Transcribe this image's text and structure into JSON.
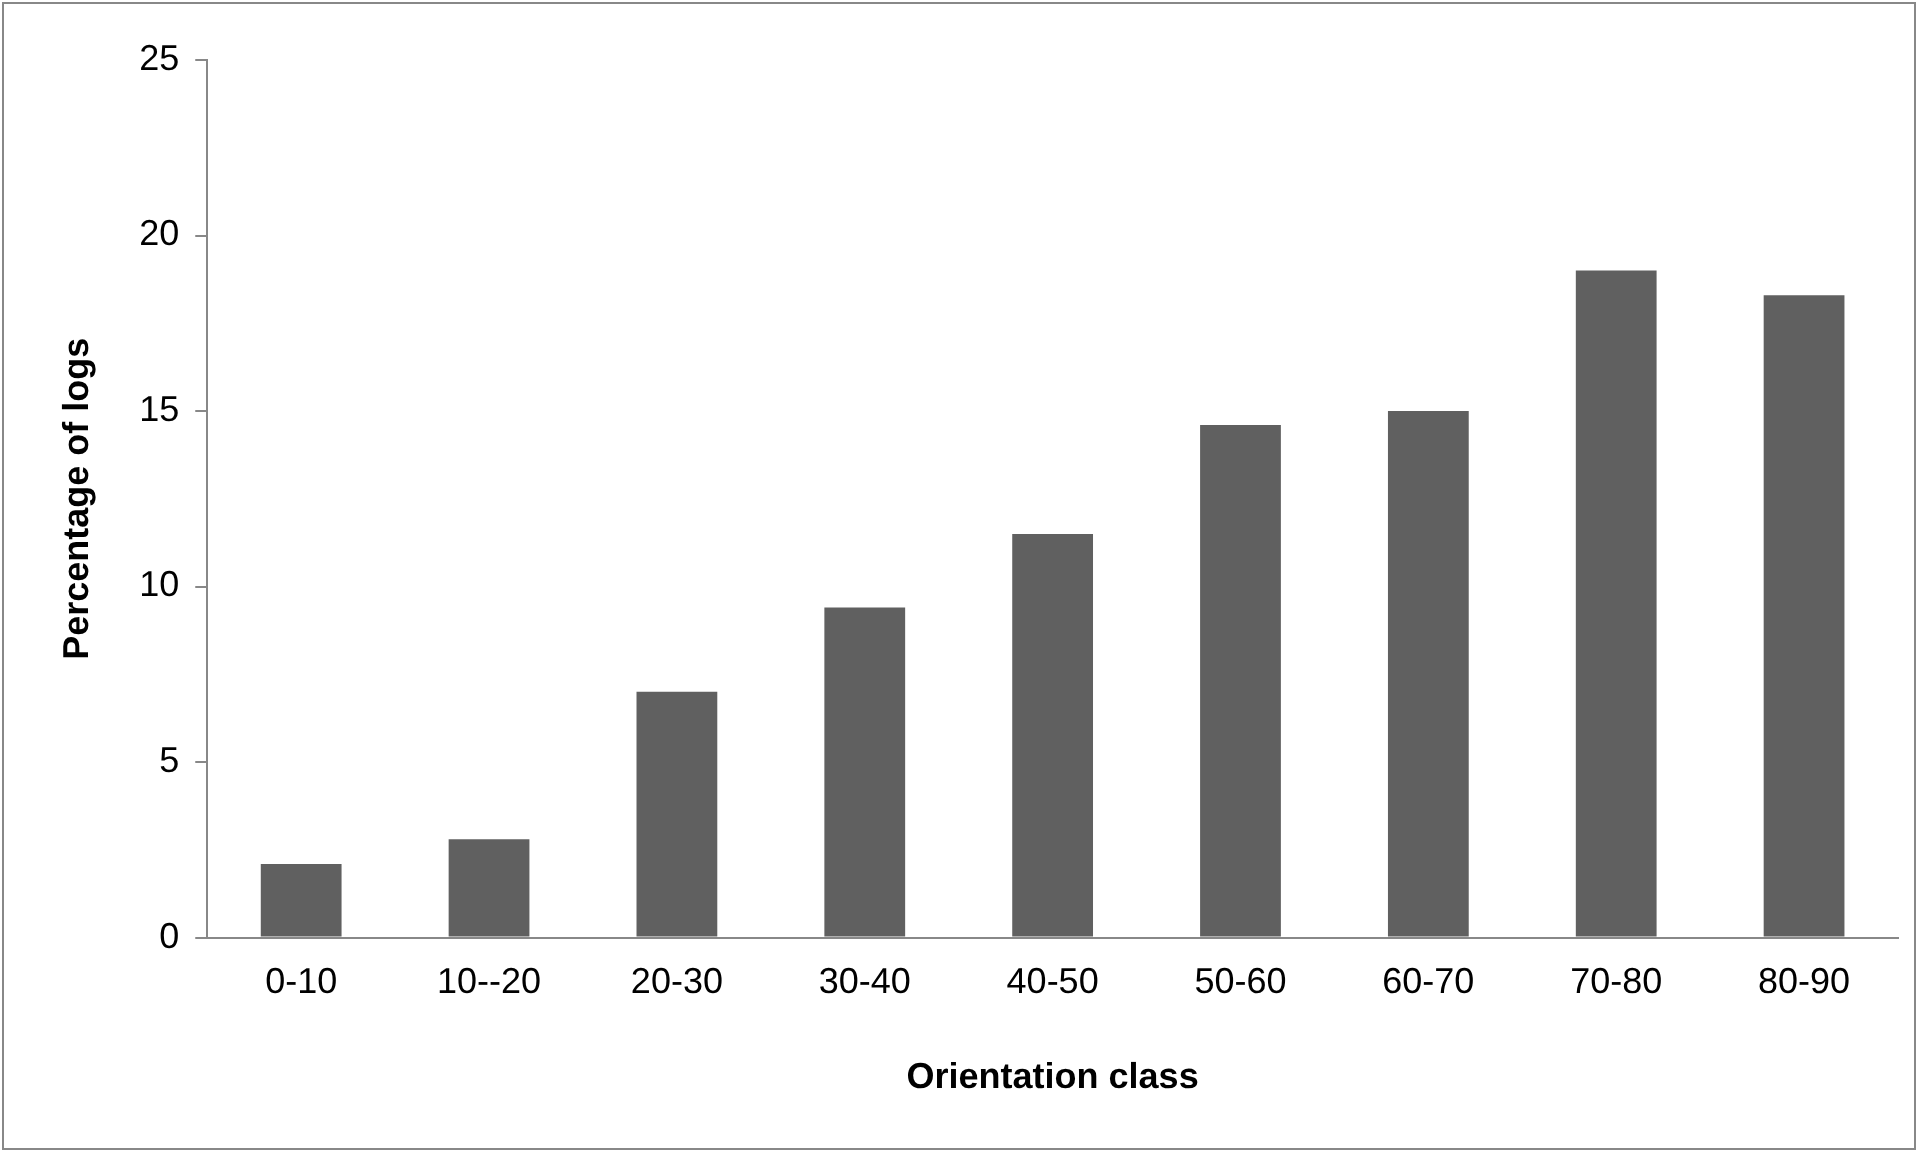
{
  "chart_data": {
    "type": "bar",
    "xlabel": "Orientation class",
    "ylabel": "Percentage of logs",
    "categories": [
      "0-10",
      "10--20",
      "20-30",
      "30-40",
      "40-50",
      "50-60",
      "60-70",
      "70-80",
      "80-90"
    ],
    "values": [
      2.1,
      2.8,
      7.0,
      9.4,
      11.5,
      14.6,
      15.0,
      19.0,
      18.3
    ],
    "color": "#606060",
    "ylim": [
      0,
      25
    ],
    "yticks": [
      0,
      5,
      10,
      15,
      20,
      25
    ],
    "grid": false,
    "legend": false
  }
}
